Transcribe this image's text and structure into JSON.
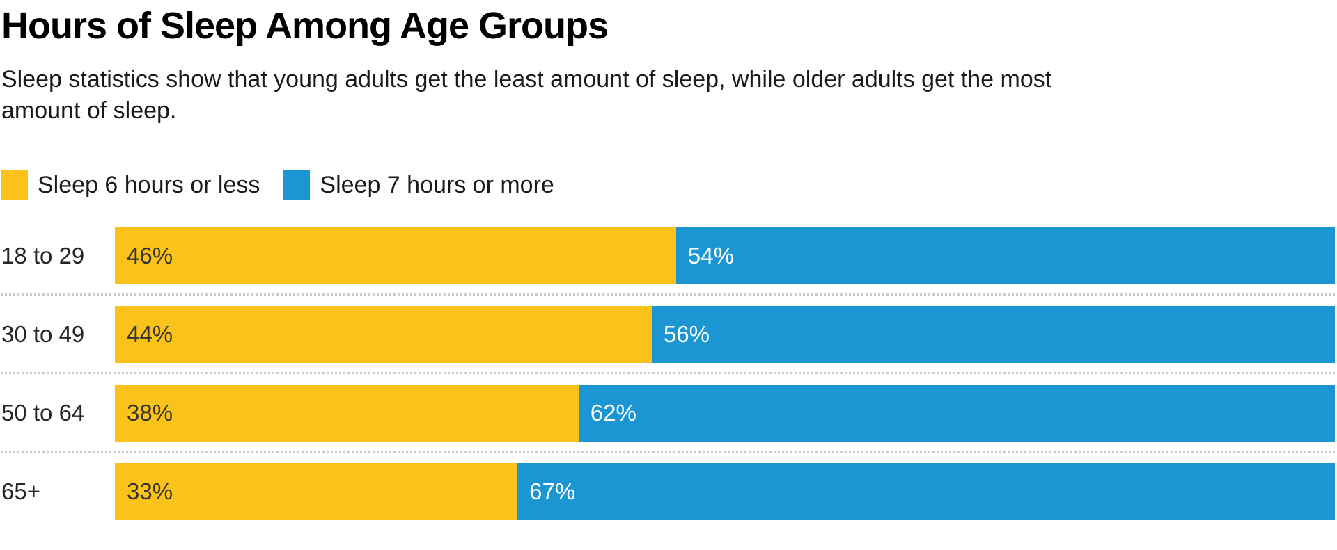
{
  "header": {
    "title": "Hours of Sleep Among Age Groups",
    "subtitle": "Sleep statistics show that young adults get the least amount of sleep, while older adults get the most\namount of sleep."
  },
  "legend": {
    "items": [
      {
        "label": "Sleep 6 hours or less",
        "color": "#FBC31A"
      },
      {
        "label": "Sleep 7 hours or more",
        "color": "#1B96D3"
      }
    ]
  },
  "colors": {
    "series_yellow": "#FBC31A",
    "series_blue": "#1B96D3",
    "value_text_on_yellow": "#333333",
    "value_text_on_blue": "#ffffff",
    "separator": "#cdcdcd",
    "title_text": "#000000",
    "body_text": "#1a1a1a"
  },
  "chart_data": {
    "type": "bar",
    "orientation": "horizontal",
    "stacked": true,
    "grid": false,
    "legend_position": "top",
    "xlim": [
      0,
      100
    ],
    "value_suffix": "%",
    "title": "Hours of Sleep Among Age Groups",
    "categories": [
      "18 to 29",
      "30 to 49",
      "50 to 64",
      "65+"
    ],
    "series": [
      {
        "name": "Sleep 6 hours or less",
        "color": "#FBC31A",
        "label_color": "#333333",
        "values": [
          46,
          44,
          38,
          33
        ]
      },
      {
        "name": "Sleep 7 hours or more",
        "color": "#1B96D3",
        "label_color": "#ffffff",
        "values": [
          54,
          56,
          62,
          67
        ]
      }
    ]
  }
}
